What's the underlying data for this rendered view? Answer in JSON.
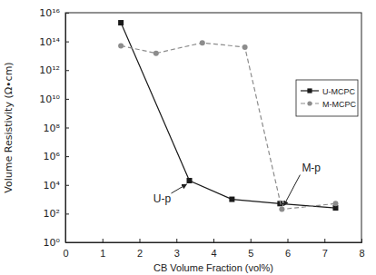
{
  "chart_data": {
    "type": "line",
    "x_label": "CB Volume Fraction (vol%)",
    "y_label": "Volume Resistivity (Ω•cm)",
    "log": "y",
    "legend": "upper right",
    "xlim": [
      0,
      8
    ],
    "xticks": [
      0,
      1,
      2,
      3,
      4,
      5,
      6,
      7,
      8
    ],
    "ylim": [
      1,
      1e+16
    ],
    "yticks": [
      {
        "value": 1,
        "label": "10⁰"
      },
      {
        "value": 100,
        "label": "10²"
      },
      {
        "value": 10000,
        "label": "10⁴"
      },
      {
        "value": 1000000,
        "label": "10⁶"
      },
      {
        "value": 100000000,
        "label": "10⁸"
      },
      {
        "value": 10000000000,
        "label": "10¹⁰"
      },
      {
        "value": 1000000000000,
        "label": "10¹²"
      },
      {
        "value": 100000000000000,
        "label": "10¹⁴"
      },
      {
        "value": 10000000000000000,
        "label": "10¹⁶"
      }
    ],
    "series": [
      {
        "name": "U-MCPC",
        "color": "#1a1a1a",
        "marker": "square",
        "line_style": "solid",
        "x": [
          1.5,
          3.35,
          4.5,
          5.8,
          7.3
        ],
        "values": [
          2000000000000000.0,
          20000,
          1000,
          500,
          250
        ]
      },
      {
        "name": "M-MCPC",
        "color": "#8c8c8c",
        "marker": "circle",
        "line_style": "dashed",
        "x": [
          1.5,
          2.45,
          3.7,
          4.85,
          5.85,
          7.3
        ],
        "values": [
          50000000000000.0,
          15000000000000.0,
          80000000000000.0,
          40000000000000.0,
          200,
          500
        ]
      }
    ],
    "annotations": [
      {
        "text": "U-p",
        "x": 3.35,
        "y": 20000
      },
      {
        "text": "M-p",
        "x": 5.85,
        "y": 200
      }
    ]
  }
}
